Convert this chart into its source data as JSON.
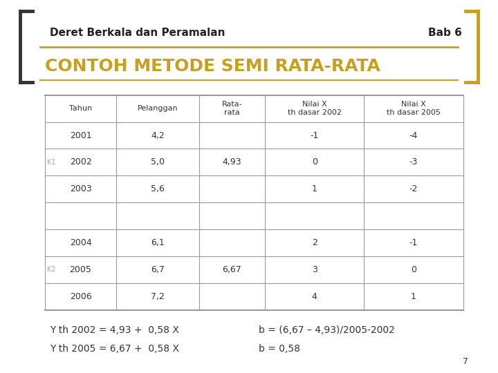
{
  "header_left": "Deret Berkala dan Peramalan",
  "header_right": "Bab 6",
  "title": "CONTOH METODE SEMI RATA-RATA",
  "title_color": "#C8A020",
  "bg_color": "#FFFFFF",
  "bracket_color": "#C8A020",
  "header_line_color": "#C8A020",
  "col_headers": [
    "Tahun",
    "Pelanggan",
    "Rata-\nrata",
    "Nilai X\nth dasar 2002",
    "Nilai X\nth dasar 2005"
  ],
  "rows": [
    {
      "label": "",
      "k_label": "",
      "tahun": "2001",
      "pelanggan": "4,2",
      "rata": "",
      "nilai2002": "-1",
      "nilai2005": "-4"
    },
    {
      "label": "K1",
      "k_label": "K1",
      "tahun": "2002",
      "pelanggan": "5,0",
      "rata": "4,93",
      "nilai2002": "0",
      "nilai2005": "-3"
    },
    {
      "label": "",
      "k_label": "",
      "tahun": "2003",
      "pelanggan": "5,6",
      "rata": "",
      "nilai2002": "1",
      "nilai2005": "-2"
    },
    {
      "label": "",
      "k_label": "",
      "tahun": "",
      "pelanggan": "",
      "rata": "",
      "nilai2002": "",
      "nilai2005": ""
    },
    {
      "label": "",
      "k_label": "",
      "tahun": "2004",
      "pelanggan": "6,1",
      "rata": "",
      "nilai2002": "2",
      "nilai2005": "-1"
    },
    {
      "label": "K2",
      "k_label": "K2",
      "tahun": "2005",
      "pelanggan": "6,7",
      "rata": "6,67",
      "nilai2002": "3",
      "nilai2005": "0"
    },
    {
      "label": "",
      "k_label": "",
      "tahun": "2006",
      "pelanggan": "7,2",
      "rata": "",
      "nilai2002": "4",
      "nilai2005": "1"
    }
  ],
  "formula1": "Y th 2002 = 4,93 +  0,58 X",
  "formula2": "Y th 2005 = 6,67 +  0,58 X",
  "formula3": "b = (6,67 – 4,93)/2005-2002",
  "formula4": "b = 0,58",
  "page_num": "7",
  "k_label_color": "#AAAAAA",
  "table_border_color": "#999999",
  "header_bg_color": "#FFFFFF",
  "row_bg_color": "#FFFFFF",
  "font_color": "#333333"
}
